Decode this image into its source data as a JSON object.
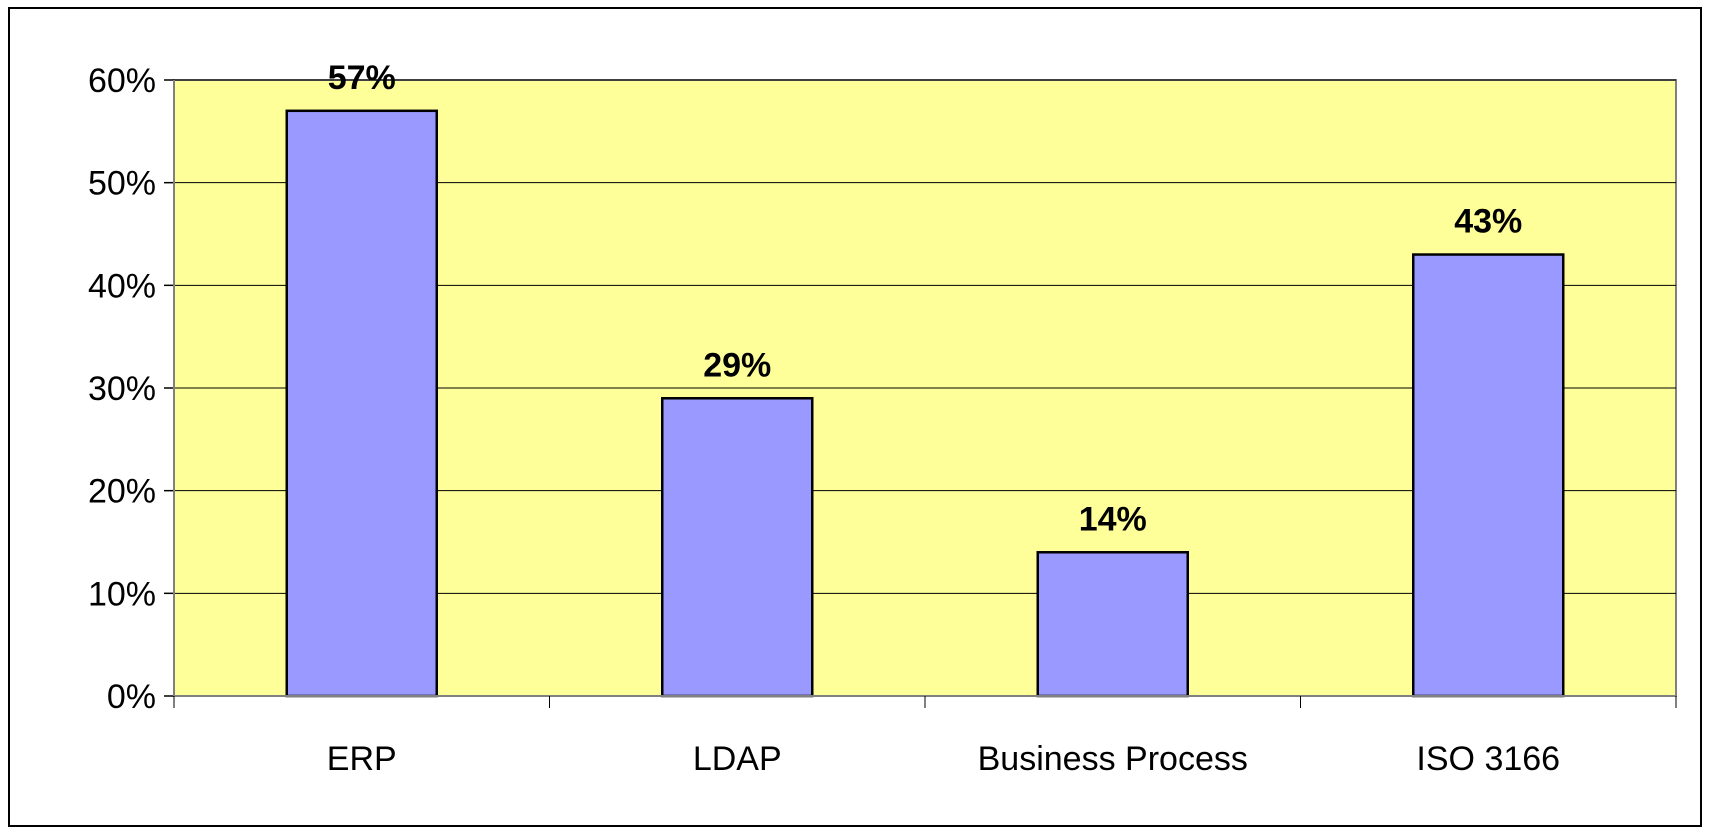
{
  "chart_data": {
    "type": "bar",
    "categories": [
      "ERP",
      "LDAP",
      "Business Process",
      "ISO 3166"
    ],
    "values": [
      57,
      29,
      14,
      43
    ],
    "value_labels": [
      "57%",
      "29%",
      "14%",
      "43%"
    ],
    "y_ticks": [
      "0%",
      "10%",
      "20%",
      "30%",
      "40%",
      "50%",
      "60%"
    ],
    "ylim": [
      0,
      60
    ],
    "y_unit": "%",
    "title": "",
    "xlabel": "",
    "ylabel": "",
    "grid": true,
    "legend": "none",
    "colors": {
      "bar_fill": "#9999FF",
      "bar_stroke": "#000000",
      "plot_background": "#FFFF99",
      "gridline": "#000000",
      "text": "#000000"
    }
  }
}
